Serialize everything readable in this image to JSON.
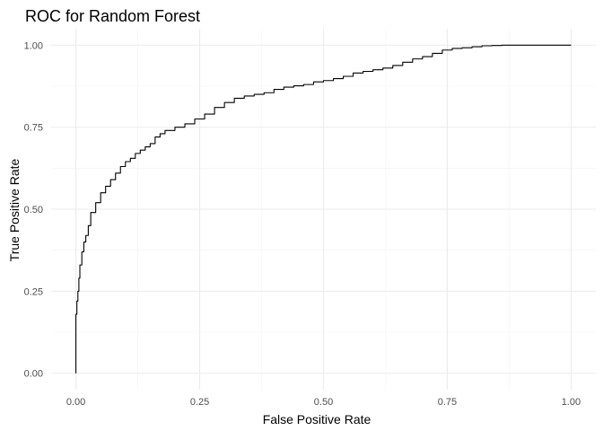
{
  "chart_data": {
    "type": "line",
    "title": "ROC for Random Forest",
    "xlabel": "False Positive Rate",
    "ylabel": "True Positive Rate",
    "xlim": [
      0,
      1
    ],
    "ylim": [
      0,
      1
    ],
    "x_ticks": [
      "0.00",
      "0.25",
      "0.50",
      "0.75",
      "1.00"
    ],
    "y_ticks": [
      "0.00",
      "0.25",
      "0.50",
      "0.75",
      "1.00"
    ],
    "grid": true,
    "legend": "none",
    "series": [
      {
        "color": "#000000",
        "x": [
          0.0,
          0.0,
          0.002,
          0.004,
          0.006,
          0.008,
          0.012,
          0.016,
          0.02,
          0.025,
          0.03,
          0.04,
          0.05,
          0.06,
          0.07,
          0.08,
          0.09,
          0.1,
          0.11,
          0.12,
          0.13,
          0.14,
          0.15,
          0.16,
          0.17,
          0.18,
          0.2,
          0.22,
          0.24,
          0.26,
          0.28,
          0.3,
          0.32,
          0.34,
          0.36,
          0.38,
          0.4,
          0.42,
          0.44,
          0.46,
          0.48,
          0.5,
          0.52,
          0.54,
          0.56,
          0.58,
          0.6,
          0.62,
          0.64,
          0.66,
          0.68,
          0.7,
          0.72,
          0.74,
          0.76,
          0.78,
          0.8,
          0.82,
          0.84,
          0.86,
          0.88,
          0.9,
          0.92,
          0.94,
          0.96,
          0.98,
          1.0
        ],
        "y": [
          0.0,
          0.1,
          0.18,
          0.22,
          0.25,
          0.29,
          0.33,
          0.37,
          0.4,
          0.42,
          0.45,
          0.49,
          0.52,
          0.55,
          0.57,
          0.59,
          0.61,
          0.63,
          0.645,
          0.655,
          0.67,
          0.68,
          0.69,
          0.7,
          0.72,
          0.73,
          0.74,
          0.75,
          0.76,
          0.775,
          0.79,
          0.81,
          0.825,
          0.838,
          0.845,
          0.85,
          0.855,
          0.865,
          0.872,
          0.876,
          0.88,
          0.888,
          0.892,
          0.898,
          0.905,
          0.915,
          0.92,
          0.925,
          0.93,
          0.938,
          0.948,
          0.958,
          0.965,
          0.975,
          0.985,
          0.99,
          0.992,
          0.995,
          0.998,
          0.999,
          1.0,
          1.0,
          1.0,
          1.0,
          1.0,
          1.0,
          1.0
        ]
      }
    ]
  }
}
